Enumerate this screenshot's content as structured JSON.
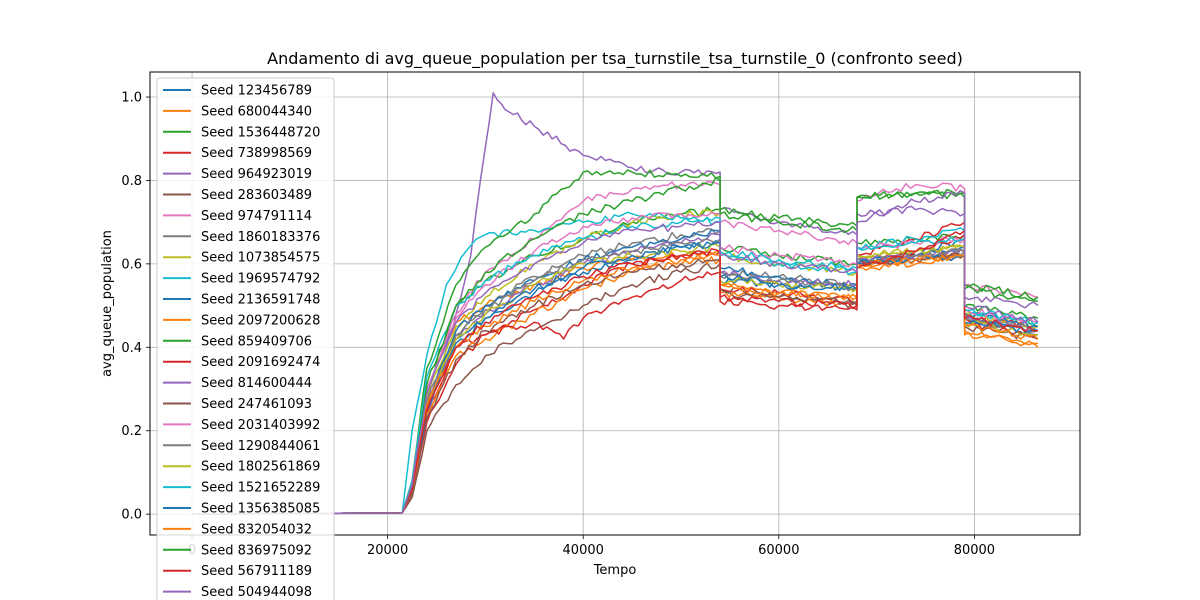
{
  "chart_data": {
    "type": "line",
    "title": "Andamento di avg_queue_population per tsa_turnstile_tsa_turnstile_0 (confronto seed)",
    "xlabel": "Tempo",
    "ylabel": "avg_queue_population",
    "xlim": [
      -4300,
      90800
    ],
    "ylim": [
      -0.05,
      1.06
    ],
    "xticks": [
      0,
      20000,
      40000,
      60000,
      80000
    ],
    "xtick_labels": [
      "0",
      "20000",
      "40000",
      "60000",
      "80000"
    ],
    "yticks": [
      0.0,
      0.2,
      0.4,
      0.6,
      0.8,
      1.0
    ],
    "ytick_labels": [
      "0.0",
      "0.2",
      "0.4",
      "0.6",
      "0.8",
      "1.0"
    ],
    "grid": true,
    "legend_position": "top-left",
    "series": [
      {
        "name": "Seed 123456789",
        "color": "#1f77b4",
        "x": [
          0,
          21500,
          22500,
          24000,
          27000,
          30000,
          35000,
          40000,
          45000,
          50000,
          54000,
          54001,
          60000,
          68000,
          68001,
          74000,
          79000,
          79001,
          86500
        ],
        "y": [
          0.0,
          0.003,
          0.06,
          0.26,
          0.42,
          0.47,
          0.53,
          0.58,
          0.61,
          0.64,
          0.65,
          0.56,
          0.55,
          0.54,
          0.6,
          0.62,
          0.64,
          0.47,
          0.43
        ]
      },
      {
        "name": "Seed 680044340",
        "color": "#ff7f0e",
        "x": [
          0,
          21500,
          22500,
          24000,
          27000,
          30000,
          35000,
          40000,
          45000,
          50000,
          54000,
          54001,
          60000,
          68000,
          68001,
          74000,
          79000,
          79001,
          86500
        ],
        "y": [
          0.0,
          0.003,
          0.07,
          0.3,
          0.46,
          0.5,
          0.55,
          0.59,
          0.61,
          0.62,
          0.63,
          0.55,
          0.53,
          0.52,
          0.6,
          0.61,
          0.62,
          0.44,
          0.4
        ]
      },
      {
        "name": "Seed 1536448720",
        "color": "#2ca02c",
        "x": [
          0,
          21500,
          22500,
          24000,
          27000,
          30000,
          35000,
          40000,
          45000,
          50000,
          54000,
          54001,
          60000,
          68000,
          68001,
          74000,
          79000,
          79001,
          86500
        ],
        "y": [
          0.0,
          0.003,
          0.07,
          0.3,
          0.5,
          0.56,
          0.62,
          0.66,
          0.7,
          0.72,
          0.73,
          0.64,
          0.62,
          0.6,
          0.65,
          0.66,
          0.67,
          0.5,
          0.47
        ]
      },
      {
        "name": "Seed 738998569",
        "color": "#d62728",
        "x": [
          0,
          21500,
          22500,
          24000,
          27000,
          30000,
          35000,
          40000,
          45000,
          50000,
          54000,
          54001,
          60000,
          68000,
          68001,
          74000,
          79000,
          79001,
          86500
        ],
        "y": [
          0.0,
          0.003,
          0.05,
          0.24,
          0.4,
          0.43,
          0.49,
          0.55,
          0.6,
          0.62,
          0.63,
          0.54,
          0.53,
          0.51,
          0.62,
          0.66,
          0.7,
          0.47,
          0.45
        ]
      },
      {
        "name": "Seed 964923019",
        "color": "#9467bd",
        "x": [
          0,
          21500,
          22500,
          24000,
          27000,
          28500,
          30000,
          30800,
          32000,
          35000,
          40000,
          45000,
          50000,
          54000,
          54001,
          60000,
          68000,
          68001,
          74000,
          79000,
          79001,
          86500
        ],
        "y": [
          0.0,
          0.003,
          0.05,
          0.22,
          0.48,
          0.62,
          0.88,
          1.01,
          0.97,
          0.93,
          0.86,
          0.83,
          0.82,
          0.82,
          0.73,
          0.7,
          0.67,
          0.72,
          0.73,
          0.72,
          0.52,
          0.5
        ]
      },
      {
        "name": "Seed 283603489",
        "color": "#8c564b",
        "x": [
          0,
          21500,
          22500,
          24000,
          27000,
          30000,
          35000,
          40000,
          45000,
          50000,
          54000,
          54001,
          60000,
          68000,
          68001,
          74000,
          79000,
          79001,
          86500
        ],
        "y": [
          0.0,
          0.003,
          0.04,
          0.2,
          0.31,
          0.38,
          0.44,
          0.5,
          0.55,
          0.58,
          0.6,
          0.53,
          0.52,
          0.5,
          0.6,
          0.61,
          0.63,
          0.46,
          0.43
        ]
      },
      {
        "name": "Seed 974791114",
        "color": "#e377c2",
        "x": [
          0,
          21500,
          22500,
          24000,
          27000,
          30000,
          35000,
          40000,
          45000,
          50000,
          54000,
          54001,
          60000,
          68000,
          68001,
          72000,
          74000,
          79000,
          79001,
          86500
        ],
        "y": [
          0.0,
          0.003,
          0.07,
          0.3,
          0.48,
          0.58,
          0.66,
          0.75,
          0.78,
          0.79,
          0.79,
          0.7,
          0.68,
          0.65,
          0.75,
          0.78,
          0.79,
          0.78,
          0.55,
          0.52
        ]
      },
      {
        "name": "Seed 1860183376",
        "color": "#7f7f7f",
        "x": [
          0,
          21500,
          22500,
          24000,
          27000,
          30000,
          35000,
          40000,
          45000,
          50000,
          54000,
          54001,
          60000,
          68000,
          68001,
          74000,
          79000,
          79001,
          86500
        ],
        "y": [
          0.0,
          0.003,
          0.06,
          0.27,
          0.43,
          0.5,
          0.57,
          0.62,
          0.65,
          0.67,
          0.68,
          0.58,
          0.57,
          0.55,
          0.61,
          0.62,
          0.63,
          0.47,
          0.44
        ]
      },
      {
        "name": "Seed 1073854575",
        "color": "#bcbd22",
        "x": [
          0,
          21500,
          22500,
          24000,
          27000,
          30000,
          35000,
          40000,
          45000,
          50000,
          54000,
          54001,
          60000,
          68000,
          68001,
          74000,
          79000,
          79001,
          86500
        ],
        "y": [
          0.0,
          0.003,
          0.06,
          0.28,
          0.45,
          0.52,
          0.6,
          0.66,
          0.7,
          0.72,
          0.72,
          0.62,
          0.6,
          0.58,
          0.62,
          0.63,
          0.64,
          0.48,
          0.45
        ]
      },
      {
        "name": "Seed 1969574792",
        "color": "#17becf",
        "x": [
          0,
          21500,
          22500,
          24000,
          26000,
          28000,
          30000,
          35000,
          40000,
          45000,
          50000,
          54000,
          54001,
          60000,
          68000,
          68001,
          74000,
          79000,
          79001,
          86500
        ],
        "y": [
          0.0,
          0.003,
          0.2,
          0.38,
          0.55,
          0.63,
          0.67,
          0.68,
          0.7,
          0.72,
          0.71,
          0.7,
          0.63,
          0.6,
          0.58,
          0.64,
          0.66,
          0.68,
          0.48,
          0.46
        ]
      },
      {
        "name": "Seed 2136591748",
        "color": "#1f77b4",
        "x": [
          0,
          21500,
          22500,
          24000,
          27000,
          30000,
          35000,
          40000,
          45000,
          50000,
          54000,
          54001,
          60000,
          68000,
          68001,
          74000,
          79000,
          79001,
          86500
        ],
        "y": [
          0.0,
          0.003,
          0.06,
          0.26,
          0.44,
          0.5,
          0.56,
          0.61,
          0.64,
          0.66,
          0.68,
          0.59,
          0.57,
          0.55,
          0.6,
          0.62,
          0.66,
          0.48,
          0.45
        ]
      },
      {
        "name": "Seed 2097200628",
        "color": "#ff7f0e",
        "x": [
          0,
          21500,
          22500,
          24000,
          27000,
          30000,
          35000,
          40000,
          45000,
          50000,
          54000,
          54001,
          60000,
          68000,
          68001,
          74000,
          79000,
          79001,
          86500
        ],
        "y": [
          0.0,
          0.003,
          0.05,
          0.24,
          0.38,
          0.42,
          0.48,
          0.54,
          0.58,
          0.6,
          0.61,
          0.53,
          0.52,
          0.5,
          0.59,
          0.6,
          0.62,
          0.43,
          0.41
        ]
      },
      {
        "name": "Seed 859409706",
        "color": "#2ca02c",
        "x": [
          0,
          21500,
          22500,
          24000,
          27000,
          30000,
          35000,
          40000,
          45000,
          50000,
          54000,
          54001,
          60000,
          68000,
          68001,
          74000,
          79000,
          79001,
          86500
        ],
        "y": [
          0.0,
          0.003,
          0.08,
          0.35,
          0.55,
          0.64,
          0.72,
          0.82,
          0.82,
          0.81,
          0.81,
          0.73,
          0.71,
          0.69,
          0.76,
          0.77,
          0.76,
          0.54,
          0.51
        ]
      },
      {
        "name": "Seed 2091692474",
        "color": "#d62728",
        "x": [
          0,
          21500,
          22500,
          24000,
          27000,
          30000,
          35000,
          38000,
          40000,
          45000,
          50000,
          54000,
          54001,
          60000,
          68000,
          68001,
          74000,
          79000,
          79001,
          86500
        ],
        "y": [
          0.0,
          0.003,
          0.05,
          0.22,
          0.36,
          0.43,
          0.46,
          0.42,
          0.47,
          0.52,
          0.56,
          0.58,
          0.51,
          0.5,
          0.49,
          0.6,
          0.63,
          0.67,
          0.46,
          0.42
        ]
      },
      {
        "name": "Seed 814600444",
        "color": "#9467bd",
        "x": [
          0,
          21500,
          22500,
          24000,
          27000,
          30000,
          35000,
          40000,
          45000,
          50000,
          54000,
          54001,
          60000,
          68000,
          68001,
          74000,
          79000,
          79001,
          86500
        ],
        "y": [
          0.0,
          0.003,
          0.06,
          0.27,
          0.42,
          0.48,
          0.55,
          0.6,
          0.63,
          0.65,
          0.67,
          0.58,
          0.56,
          0.55,
          0.61,
          0.62,
          0.63,
          0.47,
          0.44
        ]
      },
      {
        "name": "Seed 247461093",
        "color": "#8c564b",
        "x": [
          0,
          21500,
          22500,
          24000,
          27000,
          30000,
          35000,
          40000,
          45000,
          50000,
          54000,
          54001,
          60000,
          68000,
          68001,
          74000,
          79000,
          79001,
          86500
        ],
        "y": [
          0.0,
          0.003,
          0.05,
          0.23,
          0.37,
          0.44,
          0.5,
          0.55,
          0.58,
          0.6,
          0.61,
          0.54,
          0.52,
          0.51,
          0.6,
          0.61,
          0.62,
          0.45,
          0.42
        ]
      },
      {
        "name": "Seed 2031403992",
        "color": "#e377c2",
        "x": [
          0,
          21500,
          22500,
          24000,
          27000,
          30000,
          35000,
          40000,
          45000,
          50000,
          54000,
          54001,
          60000,
          68000,
          68001,
          74000,
          79000,
          79001,
          86500
        ],
        "y": [
          0.0,
          0.003,
          0.07,
          0.3,
          0.47,
          0.55,
          0.63,
          0.69,
          0.71,
          0.72,
          0.72,
          0.64,
          0.62,
          0.6,
          0.64,
          0.65,
          0.66,
          0.49,
          0.46
        ]
      },
      {
        "name": "Seed 1290844061",
        "color": "#7f7f7f",
        "x": [
          0,
          21500,
          22500,
          24000,
          27000,
          30000,
          35000,
          40000,
          45000,
          50000,
          54000,
          54001,
          60000,
          68000,
          68001,
          74000,
          79000,
          79001,
          86500
        ],
        "y": [
          0.0,
          0.003,
          0.06,
          0.27,
          0.43,
          0.49,
          0.56,
          0.61,
          0.63,
          0.65,
          0.66,
          0.57,
          0.56,
          0.54,
          0.61,
          0.62,
          0.63,
          0.47,
          0.44
        ]
      },
      {
        "name": "Seed 1802561869",
        "color": "#bcbd22",
        "x": [
          0,
          21500,
          22500,
          24000,
          27000,
          30000,
          35000,
          40000,
          45000,
          50000,
          54000,
          54001,
          60000,
          68000,
          68001,
          74000,
          79000,
          79001,
          86500
        ],
        "y": [
          0.0,
          0.003,
          0.06,
          0.26,
          0.42,
          0.48,
          0.55,
          0.6,
          0.62,
          0.63,
          0.64,
          0.56,
          0.55,
          0.54,
          0.62,
          0.63,
          0.64,
          0.46,
          0.43
        ]
      },
      {
        "name": "Seed 1521652289",
        "color": "#17becf",
        "x": [
          0,
          21500,
          22500,
          24000,
          27000,
          30000,
          35000,
          40000,
          45000,
          50000,
          54000,
          54001,
          60000,
          68000,
          68001,
          74000,
          79000,
          79001,
          86500
        ],
        "y": [
          0.0,
          0.003,
          0.08,
          0.33,
          0.5,
          0.56,
          0.62,
          0.66,
          0.69,
          0.7,
          0.71,
          0.63,
          0.61,
          0.59,
          0.64,
          0.65,
          0.66,
          0.49,
          0.46
        ]
      },
      {
        "name": "Seed 1356385085",
        "color": "#1f77b4",
        "x": [
          0,
          21500,
          22500,
          24000,
          27000,
          30000,
          35000,
          40000,
          45000,
          50000,
          54000,
          54001,
          60000,
          68000,
          68001,
          74000,
          79000,
          79001,
          86500
        ],
        "y": [
          0.0,
          0.003,
          0.06,
          0.25,
          0.41,
          0.47,
          0.54,
          0.59,
          0.62,
          0.64,
          0.65,
          0.57,
          0.55,
          0.54,
          0.6,
          0.61,
          0.62,
          0.46,
          0.44
        ]
      },
      {
        "name": "Seed 832054032",
        "color": "#ff7f0e",
        "x": [
          0,
          21500,
          22500,
          24000,
          27000,
          30000,
          35000,
          40000,
          45000,
          50000,
          54000,
          54001,
          60000,
          68000,
          68001,
          74000,
          79000,
          79001,
          86500
        ],
        "y": [
          0.0,
          0.003,
          0.06,
          0.26,
          0.4,
          0.45,
          0.51,
          0.56,
          0.59,
          0.61,
          0.62,
          0.55,
          0.53,
          0.52,
          0.6,
          0.61,
          0.62,
          0.45,
          0.42
        ]
      },
      {
        "name": "Seed 836975092",
        "color": "#2ca02c",
        "x": [
          0,
          21500,
          22500,
          24000,
          27000,
          30000,
          35000,
          40000,
          45000,
          50000,
          54000,
          54001,
          60000,
          68000,
          68001,
          74000,
          79000,
          79001,
          86500
        ],
        "y": [
          0.0,
          0.003,
          0.07,
          0.31,
          0.5,
          0.58,
          0.66,
          0.72,
          0.75,
          0.78,
          0.8,
          0.72,
          0.7,
          0.68,
          0.76,
          0.77,
          0.77,
          0.55,
          0.52
        ]
      },
      {
        "name": "Seed 567911189",
        "color": "#d62728",
        "x": [
          0,
          21500,
          22500,
          24000,
          27000,
          30000,
          35000,
          40000,
          45000,
          50000,
          54000,
          54001,
          60000,
          68000,
          68001,
          74000,
          79000,
          79001,
          86500
        ],
        "y": [
          0.0,
          0.003,
          0.06,
          0.25,
          0.4,
          0.46,
          0.52,
          0.57,
          0.6,
          0.62,
          0.63,
          0.52,
          0.51,
          0.5,
          0.59,
          0.63,
          0.68,
          0.47,
          0.44
        ]
      },
      {
        "name": "Seed 504944098",
        "color": "#9467bd",
        "x": [
          0,
          21500,
          22500,
          24000,
          27000,
          30000,
          35000,
          40000,
          45000,
          50000,
          54000,
          54001,
          60000,
          68000,
          68001,
          74000,
          79000,
          79001,
          86500
        ],
        "y": [
          0.0,
          0.003,
          0.07,
          0.29,
          0.46,
          0.53,
          0.6,
          0.65,
          0.68,
          0.69,
          0.7,
          0.62,
          0.6,
          0.58,
          0.7,
          0.75,
          0.77,
          0.5,
          0.46
        ]
      }
    ]
  }
}
